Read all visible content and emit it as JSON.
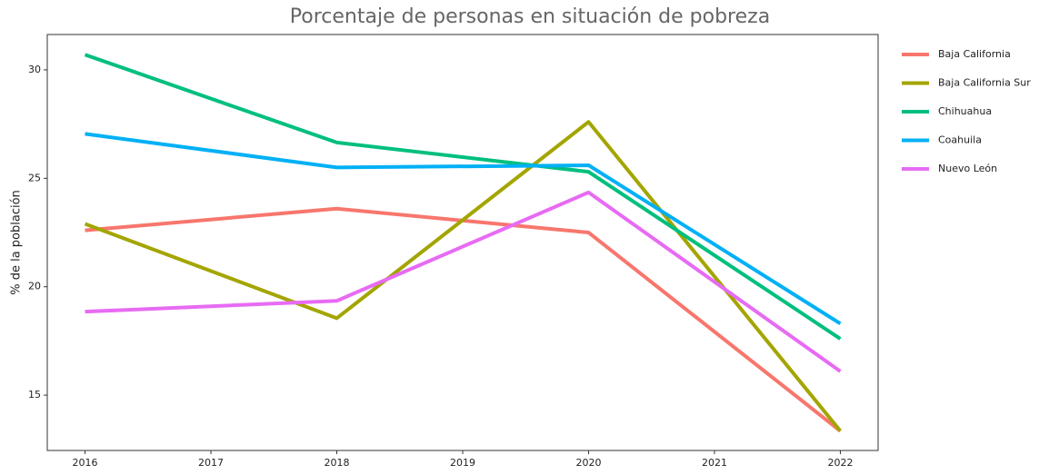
{
  "chart_data": {
    "type": "line",
    "title": "Porcentaje de personas en situación de pobreza",
    "y_label": "% de la población",
    "x": [
      2016,
      2018,
      2020,
      2022
    ],
    "series": [
      {
        "name": "Baja California",
        "color": "#f8766d",
        "values": [
          22.6,
          23.6,
          22.5,
          13.35
        ]
      },
      {
        "name": "Baja California Sur",
        "color": "#a3a500",
        "values": [
          22.9,
          18.55,
          27.6,
          13.35
        ]
      },
      {
        "name": "Chihuahua",
        "color": "#00bf7d",
        "values": [
          30.7,
          26.65,
          25.3,
          17.6
        ]
      },
      {
        "name": "Coahuila",
        "color": "#00b0f6",
        "values": [
          27.05,
          25.5,
          25.6,
          18.3
        ]
      },
      {
        "name": "Nuevo León",
        "color": "#e76bf3",
        "values": [
          18.85,
          19.35,
          24.35,
          16.1
        ]
      }
    ],
    "xlim": [
      2015.7,
      2022.3
    ],
    "xticks": [
      2016,
      2017,
      2018,
      2019,
      2020,
      2021,
      2022
    ],
    "ylim": [
      12.45,
      31.63
    ],
    "yticks": [
      15,
      20,
      25,
      30
    ],
    "grid": false,
    "legend": "right"
  }
}
